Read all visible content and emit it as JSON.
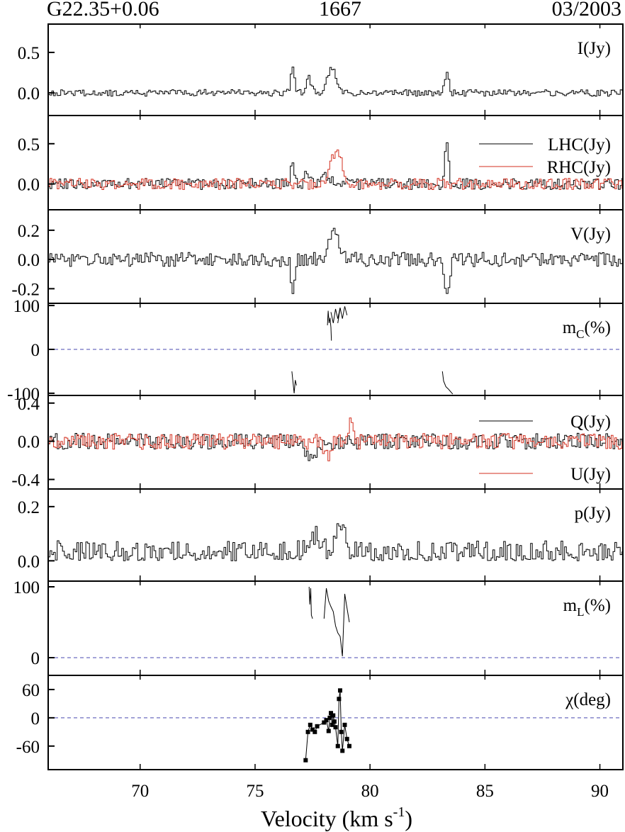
{
  "header": {
    "left": "G22.35+0.06",
    "center": "1667",
    "right": "03/2003"
  },
  "chart_data": {
    "type": "line",
    "xlabel_main": "Velocity (km s",
    "xlabel_sup": "-1",
    "xlabel_tail": ")",
    "xlim": [
      66,
      91
    ],
    "xticks": [
      70,
      75,
      80,
      85,
      90
    ],
    "colors": {
      "primary": "#000000",
      "secondary": "#d32f1f",
      "zero_line": "#4a4ab0"
    },
    "panels": [
      {
        "id": "I",
        "label": "I(Jy)",
        "ylim": [
          -0.28,
          0.85
        ],
        "yticks": [
          0.5,
          0.0
        ],
        "ytick_labels": [
          "0.5",
          "0.0"
        ],
        "style": "step",
        "series": [
          {
            "color": "#000000",
            "features": [
              [
                76.6,
                0.28,
                0.12
              ],
              [
                77.3,
                0.18,
                0.15
              ],
              [
                78.3,
                0.32,
                0.25
              ],
              [
                83.3,
                0.25,
                0.13
              ]
            ],
            "noise": 0.03,
            "seed": 1
          }
        ]
      },
      {
        "id": "LR",
        "label": "",
        "ylim": [
          -0.32,
          0.85
        ],
        "yticks": [
          0.5,
          0.0
        ],
        "ytick_labels": [
          "0.5",
          "0.0"
        ],
        "style": "step",
        "legend": [
          "LHC(Jy)",
          "RHC(Jy)"
        ],
        "series": [
          {
            "name": "LHC(Jy)",
            "color": "#000000",
            "features": [
              [
                76.6,
                0.33,
                0.1
              ],
              [
                77.2,
                0.18,
                0.12
              ],
              [
                78.1,
                0.1,
                0.2
              ],
              [
                83.3,
                0.5,
                0.12
              ]
            ],
            "noise": 0.05,
            "seed": 2
          },
          {
            "name": "RHC(Jy)",
            "color": "#d32f1f",
            "features": [
              [
                78.5,
                0.42,
                0.35
              ]
            ],
            "noise": 0.05,
            "seed": 3
          }
        ]
      },
      {
        "id": "V",
        "label": "V(Jy)",
        "ylim": [
          -0.3,
          0.34
        ],
        "yticks": [
          0.2,
          0.0,
          -0.2
        ],
        "ytick_labels": [
          "0.2",
          "0.0",
          "-0.2"
        ],
        "style": "step",
        "series": [
          {
            "color": "#000000",
            "features": [
              [
                76.6,
                -0.2,
                0.1
              ],
              [
                78.4,
                0.2,
                0.3
              ],
              [
                83.3,
                -0.26,
                0.15
              ]
            ],
            "noise": 0.035,
            "seed": 4
          }
        ]
      },
      {
        "id": "mc",
        "label": "m",
        "label_sub": "C",
        "label_tail": "(%)",
        "ylim": [
          -105,
          105
        ],
        "yticks": [
          100,
          0,
          -100
        ],
        "ytick_labels": [
          "100",
          "0",
          "-100"
        ],
        "zero_line": true,
        "style": "line",
        "segments": [
          {
            "x": [
              78.15,
              78.18,
              78.22,
              78.26,
              78.3,
              78.32
            ],
            "y": [
              55,
              88,
              60,
              72,
              50,
              20
            ]
          },
          {
            "x": [
              78.3,
              78.4,
              78.5,
              78.6,
              78.7
            ],
            "y": [
              85,
              60,
              92,
              70,
              95
            ]
          },
          {
            "x": [
              78.6,
              78.7,
              78.8,
              78.9,
              79.0
            ],
            "y": [
              60,
              95,
              70,
              98,
              78
            ]
          },
          {
            "x": [
              76.6,
              76.65,
              76.7,
              76.75,
              76.8
            ],
            "y": [
              -50,
              -75,
              -100,
              -70,
              -82
            ]
          },
          {
            "x": [
              83.15,
              83.2,
              83.3,
              83.4,
              83.5,
              83.6
            ],
            "y": [
              -50,
              -72,
              -85,
              -90,
              -96,
              -102
            ]
          }
        ]
      },
      {
        "id": "QU",
        "label": "",
        "ylim": [
          -0.5,
          0.48
        ],
        "yticks": [
          0.4,
          0.0,
          -0.4
        ],
        "ytick_labels": [
          "0.4",
          "0.0",
          "-0.4"
        ],
        "style": "step",
        "legend": [
          "Q(Jy)",
          "U(Jy)"
        ],
        "series": [
          {
            "name": "Q(Jy)",
            "color": "#000000",
            "features": [
              [
                77.4,
                -0.15,
                0.3
              ],
              [
                78.2,
                -0.1,
                0.2
              ]
            ],
            "noise": 0.06,
            "seed": 5
          },
          {
            "name": "U(Jy)",
            "color": "#d32f1f",
            "features": [
              [
                78.1,
                -0.17,
                0.2
              ],
              [
                79.1,
                0.18,
                0.15
              ]
            ],
            "noise": 0.06,
            "seed": 6
          }
        ]
      },
      {
        "id": "p",
        "label": "p(Jy)",
        "ylim": [
          -0.075,
          0.265
        ],
        "yticks": [
          0.2,
          0.0
        ],
        "ytick_labels": [
          "0.2",
          "0.0"
        ],
        "style": "step",
        "series": [
          {
            "color": "#000000",
            "features": [
              [
                77.5,
                0.08,
                0.3
              ],
              [
                78.6,
                0.08,
                0.4
              ]
            ],
            "noise": 0.035,
            "baseline": 0.025,
            "seed": 7
          }
        ]
      },
      {
        "id": "mL",
        "label": "m",
        "label_sub": "L",
        "label_tail": "(%)",
        "ylim": [
          -25,
          108
        ],
        "yticks": [
          100,
          0
        ],
        "ytick_labels": [
          "100",
          "0"
        ],
        "zero_line": true,
        "style": "line",
        "segments": [
          {
            "x": [
              77.35,
              77.38,
              77.42,
              77.45,
              77.5
            ],
            "y": [
              100,
              75,
              98,
              60,
              55
            ]
          },
          {
            "x": [
              78.0,
              78.1,
              78.2,
              78.3,
              78.4,
              78.5,
              78.6,
              78.7,
              78.8,
              78.9,
              79.0,
              79.1
            ],
            "y": [
              55,
              98,
              80,
              72,
              65,
              45,
              35,
              30,
              2,
              90,
              70,
              50
            ]
          }
        ]
      },
      {
        "id": "chi",
        "label": "χ(deg)",
        "ylim": [
          -110,
          90
        ],
        "yticks": [
          60,
          0,
          -60
        ],
        "ytick_labels": [
          "60",
          "0",
          "-60"
        ],
        "zero_line": true,
        "style": "marker",
        "points": {
          "x": [
            77.2,
            77.3,
            77.4,
            77.5,
            77.6,
            77.7,
            78.0,
            78.1,
            78.2,
            78.25,
            78.3,
            78.35,
            78.4,
            78.45,
            78.5,
            78.6,
            78.65,
            78.7,
            78.75,
            78.8,
            78.9,
            79.0,
            79.1
          ],
          "y": [
            -90,
            -30,
            -15,
            -25,
            -30,
            -18,
            -10,
            -5,
            -28,
            0,
            10,
            -15,
            5,
            -8,
            -20,
            -60,
            40,
            58,
            -30,
            -70,
            -15,
            -45,
            -60
          ]
        }
      }
    ]
  }
}
